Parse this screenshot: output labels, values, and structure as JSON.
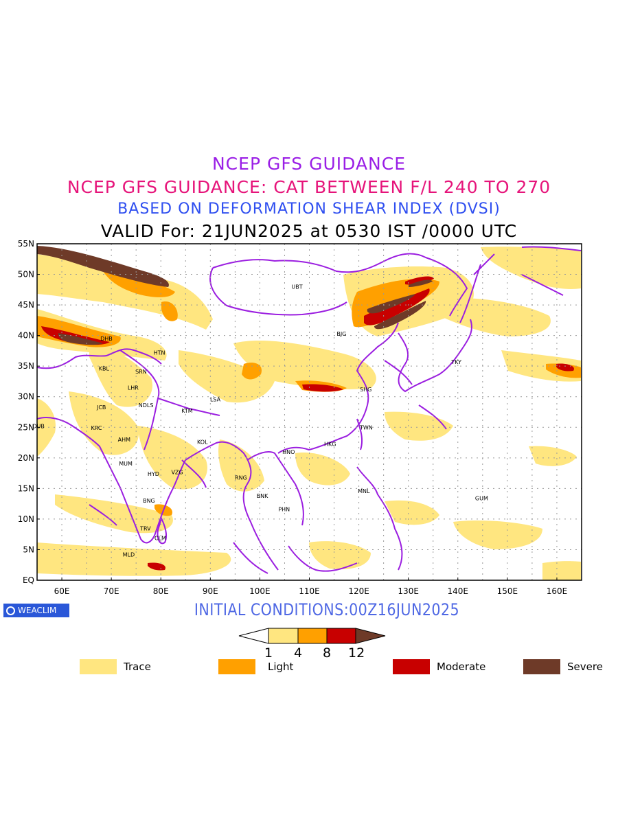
{
  "titles": {
    "line1": "NCEP GFS GUIDANCE",
    "line2": "NCEP GFS GUIDANCE: CAT BETWEEN F/L 240 TO 270",
    "line3": "BASED ON DEFORMATION SHEAR INDEX (DVSI)",
    "line4": "VALID For: 21JUN2025 at 0530 IST /0000 UTC"
  },
  "map": {
    "lon_range": [
      55,
      165
    ],
    "lat_range": [
      0,
      55
    ],
    "lat_labels": [
      "55N",
      "50N",
      "45N",
      "40N",
      "35N",
      "30N",
      "25N",
      "20N",
      "15N",
      "10N",
      "5N",
      "EQ"
    ],
    "lon_labels": [
      "60E",
      "70E",
      "80E",
      "90E",
      "100E",
      "110E",
      "120E",
      "130E",
      "140E",
      "150E",
      "160E"
    ],
    "colors": {
      "trace": "#ffe680",
      "light": "#ffa000",
      "moderate": "#c80000",
      "severe": "#6e3a28",
      "boundaries": "#9b1ee0",
      "grid": "#999999"
    },
    "stations": [
      {
        "code": "UBT",
        "lon": 107.5,
        "lat": 48.0
      },
      {
        "code": "BJG",
        "lon": 116.5,
        "lat": 40.3
      },
      {
        "code": "DHB",
        "lon": 69.0,
        "lat": 39.5
      },
      {
        "code": "HTN",
        "lon": 79.7,
        "lat": 37.2
      },
      {
        "code": "KBL",
        "lon": 68.5,
        "lat": 34.6
      },
      {
        "code": "SRN",
        "lon": 76.0,
        "lat": 34.1
      },
      {
        "code": "TKY",
        "lon": 139.7,
        "lat": 35.7
      },
      {
        "code": "LHR",
        "lon": 74.4,
        "lat": 31.5
      },
      {
        "code": "SHG",
        "lon": 121.4,
        "lat": 31.2
      },
      {
        "code": "LSA",
        "lon": 91.0,
        "lat": 29.6
      },
      {
        "code": "JCB",
        "lon": 68.0,
        "lat": 28.3
      },
      {
        "code": "NDLS",
        "lon": 77.0,
        "lat": 28.6
      },
      {
        "code": "KTM",
        "lon": 85.3,
        "lat": 27.7
      },
      {
        "code": "DUB",
        "lon": 55.3,
        "lat": 25.2
      },
      {
        "code": "TWN",
        "lon": 121.5,
        "lat": 25.0
      },
      {
        "code": "KRC",
        "lon": 67.0,
        "lat": 24.9
      },
      {
        "code": "AHM",
        "lon": 72.6,
        "lat": 23.0
      },
      {
        "code": "KOL",
        "lon": 88.4,
        "lat": 22.6
      },
      {
        "code": "HKG",
        "lon": 114.2,
        "lat": 22.3
      },
      {
        "code": "HNO",
        "lon": 105.8,
        "lat": 21.0
      },
      {
        "code": "MUM",
        "lon": 72.9,
        "lat": 19.1
      },
      {
        "code": "HYD",
        "lon": 78.5,
        "lat": 17.4
      },
      {
        "code": "VZG",
        "lon": 83.3,
        "lat": 17.7
      },
      {
        "code": "RNG",
        "lon": 96.2,
        "lat": 16.8
      },
      {
        "code": "MNL",
        "lon": 121.0,
        "lat": 14.6
      },
      {
        "code": "GUM",
        "lon": 144.8,
        "lat": 13.4
      },
      {
        "code": "BNK",
        "lon": 100.5,
        "lat": 13.8
      },
      {
        "code": "PHN",
        "lon": 104.9,
        "lat": 11.6
      },
      {
        "code": "BNG",
        "lon": 77.6,
        "lat": 13.0
      },
      {
        "code": "TRV",
        "lon": 76.9,
        "lat": 8.5
      },
      {
        "code": "CLM",
        "lon": 79.9,
        "lat": 6.9
      },
      {
        "code": "MLD",
        "lon": 73.5,
        "lat": 4.2
      }
    ]
  },
  "footer": {
    "logo": "WEACLIM",
    "initial_conditions": "INITIAL CONDITIONS:00Z16JUN2025"
  },
  "colorbar": {
    "ticks": [
      "1",
      "4",
      "8",
      "12"
    ]
  },
  "legend": [
    {
      "label": "Trace",
      "color": "#ffe680"
    },
    {
      "label": "Light",
      "color": "#ffa000"
    },
    {
      "label": "Moderate",
      "color": "#c80000"
    },
    {
      "label": "Severe",
      "color": "#6e3a28"
    }
  ]
}
